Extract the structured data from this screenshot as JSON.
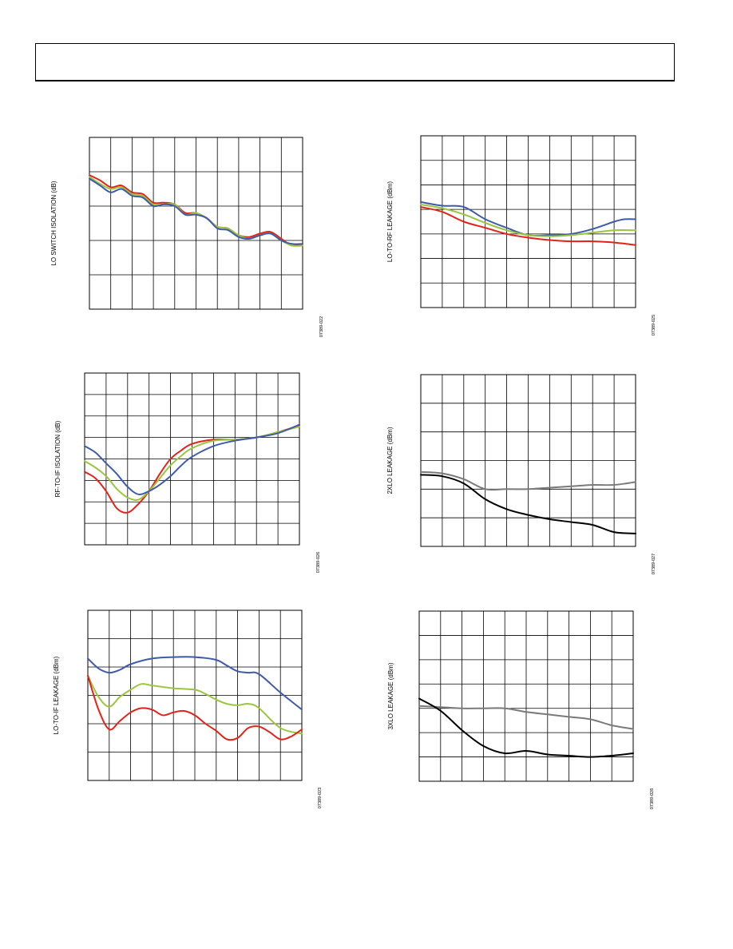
{
  "header": {
    "title": ""
  },
  "colors": {
    "blue": "#3d5ba9",
    "green": "#9bc53d",
    "red": "#e2231a",
    "black": "#000000",
    "gray": "#7a7a7a"
  },
  "chart_data": [
    {
      "id": "lo-switch-isolation",
      "type": "line",
      "ylabel": "LO SWITCH ISOLATION (dB)",
      "figure_code": "07389-022",
      "grid": true,
      "x_divisions": 10,
      "y_divisions": 5,
      "ylim": [
        0,
        5
      ],
      "xlim": [
        0,
        10
      ],
      "series": [
        {
          "color": "#e2231a",
          "x": [
            0,
            0.5,
            1,
            1.5,
            2,
            2.5,
            3,
            3.5,
            4,
            4.5,
            5,
            5.5,
            6,
            6.5,
            7,
            7.5,
            8,
            8.5,
            9,
            9.5,
            10
          ],
          "y": [
            3.9,
            3.75,
            3.55,
            3.6,
            3.4,
            3.35,
            3.1,
            3.1,
            3.05,
            2.8,
            2.8,
            2.65,
            2.4,
            2.35,
            2.15,
            2.1,
            2.2,
            2.25,
            2.05,
            1.85,
            1.9
          ]
        },
        {
          "color": "#9bc53d",
          "x": [
            0,
            0.5,
            1,
            1.5,
            2,
            2.5,
            3,
            3.5,
            4,
            4.5,
            5,
            5.5,
            6,
            6.5,
            7,
            7.5,
            8,
            8.5,
            9,
            9.5,
            10
          ],
          "y": [
            3.85,
            3.65,
            3.5,
            3.55,
            3.35,
            3.3,
            3.05,
            3.05,
            3.05,
            2.75,
            2.8,
            2.65,
            2.4,
            2.35,
            2.15,
            2.05,
            2.15,
            2.2,
            2.0,
            1.85,
            1.85
          ]
        },
        {
          "color": "#3d5ba9",
          "x": [
            0,
            0.5,
            1,
            1.5,
            2,
            2.5,
            3,
            3.5,
            4,
            4.5,
            5,
            5.5,
            6,
            6.5,
            7,
            7.5,
            8,
            8.5,
            9,
            9.5,
            10
          ],
          "y": [
            3.8,
            3.6,
            3.4,
            3.5,
            3.3,
            3.25,
            3.0,
            3.05,
            3.0,
            2.75,
            2.75,
            2.65,
            2.35,
            2.3,
            2.1,
            2.05,
            2.15,
            2.2,
            2.0,
            1.9,
            1.9
          ]
        }
      ]
    },
    {
      "id": "lo-to-rf-leakage",
      "type": "line",
      "ylabel": "LO-TO-RF LEAKAGE (dBm)",
      "figure_code": "07389-025",
      "grid": true,
      "x_divisions": 10,
      "y_divisions": 7,
      "ylim": [
        0,
        7
      ],
      "xlim": [
        0,
        10
      ],
      "series": [
        {
          "color": "#3d5ba9",
          "x": [
            0,
            1,
            2,
            3,
            4,
            5,
            6,
            7,
            8,
            9,
            9.5,
            10
          ],
          "y": [
            4.3,
            4.15,
            4.1,
            3.6,
            3.25,
            2.95,
            2.95,
            3.0,
            3.2,
            3.5,
            3.6,
            3.6
          ]
        },
        {
          "color": "#9bc53d",
          "x": [
            0,
            1,
            2,
            3,
            4,
            5,
            6,
            7,
            8,
            9,
            10
          ],
          "y": [
            4.2,
            4.05,
            3.8,
            3.45,
            3.15,
            2.95,
            2.9,
            2.95,
            3.05,
            3.15,
            3.15
          ]
        },
        {
          "color": "#e2231a",
          "x": [
            0,
            1,
            2,
            3,
            4,
            5,
            6,
            7,
            8,
            9,
            10
          ],
          "y": [
            4.1,
            3.9,
            3.5,
            3.25,
            3.0,
            2.85,
            2.75,
            2.7,
            2.7,
            2.65,
            2.55
          ]
        }
      ]
    },
    {
      "id": "rf-to-if-isolation",
      "type": "line",
      "ylabel": "RF-TO-IF ISOLATION (dB)",
      "figure_code": "07389-026",
      "grid": true,
      "x_divisions": 10,
      "y_divisions": 8,
      "ylim": [
        0,
        8
      ],
      "xlim": [
        0,
        10
      ],
      "series": [
        {
          "color": "#e2231a",
          "x": [
            0,
            0.5,
            1,
            1.5,
            2,
            2.5,
            3,
            3.5,
            4,
            4.5,
            5,
            6,
            7,
            8,
            9,
            10
          ],
          "y": [
            3.4,
            3.1,
            2.5,
            1.7,
            1.5,
            1.9,
            2.5,
            3.3,
            4.0,
            4.4,
            4.7,
            4.9,
            4.9,
            5.0,
            5.25,
            5.55
          ]
        },
        {
          "color": "#9bc53d",
          "x": [
            0,
            0.5,
            1,
            1.5,
            2,
            2.5,
            3,
            3.5,
            4,
            4.5,
            5,
            6,
            7,
            8,
            9,
            10
          ],
          "y": [
            3.9,
            3.6,
            3.2,
            2.6,
            2.2,
            2.1,
            2.5,
            3.1,
            3.7,
            4.15,
            4.5,
            4.85,
            4.9,
            5.0,
            5.25,
            5.5
          ]
        },
        {
          "color": "#3d5ba9",
          "x": [
            0,
            0.5,
            1,
            1.5,
            2,
            2.5,
            3,
            3.5,
            4,
            4.5,
            5,
            6,
            7,
            8,
            9,
            10
          ],
          "y": [
            4.6,
            4.3,
            3.8,
            3.3,
            2.7,
            2.35,
            2.5,
            2.8,
            3.2,
            3.7,
            4.1,
            4.6,
            4.85,
            5.0,
            5.2,
            5.6
          ]
        }
      ]
    },
    {
      "id": "2xlo-leakage",
      "type": "line",
      "ylabel": "2XLO LEAKAGE (dBm)",
      "figure_code": "07389-027",
      "grid": true,
      "x_divisions": 10,
      "y_divisions": 6,
      "ylim": [
        0,
        6
      ],
      "xlim": [
        0,
        10
      ],
      "series": [
        {
          "color": "#7a7a7a",
          "x": [
            0,
            1,
            2,
            3,
            4,
            5,
            6,
            7,
            8,
            9,
            10
          ],
          "y": [
            2.6,
            2.55,
            2.35,
            2.0,
            2.0,
            2.0,
            2.05,
            2.1,
            2.15,
            2.15,
            2.25
          ]
        },
        {
          "color": "#000000",
          "x": [
            0,
            1,
            2,
            3,
            4,
            5,
            6,
            7,
            8,
            9,
            10
          ],
          "y": [
            2.5,
            2.45,
            2.2,
            1.65,
            1.3,
            1.1,
            0.95,
            0.85,
            0.75,
            0.5,
            0.45
          ]
        }
      ]
    },
    {
      "id": "lo-to-if-leakage",
      "type": "line",
      "ylabel": "LO-TO-IF LEAKAGE (dBm)",
      "figure_code": "07389-023",
      "grid": true,
      "x_divisions": 10,
      "y_divisions": 6,
      "ylim": [
        0,
        6
      ],
      "xlim": [
        0,
        10
      ],
      "series": [
        {
          "color": "#3d5ba9",
          "x": [
            0,
            0.5,
            1,
            1.5,
            2,
            3,
            4,
            5,
            6,
            6.5,
            7,
            7.5,
            8,
            9,
            10
          ],
          "y": [
            4.3,
            3.95,
            3.8,
            3.9,
            4.1,
            4.3,
            4.35,
            4.35,
            4.25,
            4.05,
            3.85,
            3.8,
            3.75,
            3.1,
            2.5
          ]
        },
        {
          "color": "#9bc53d",
          "x": [
            0,
            0.5,
            1,
            1.5,
            2,
            2.5,
            3,
            4,
            5,
            5.5,
            6,
            6.5,
            7,
            7.5,
            8,
            9,
            10
          ],
          "y": [
            3.7,
            2.95,
            2.6,
            2.95,
            3.2,
            3.4,
            3.35,
            3.25,
            3.2,
            3.05,
            2.85,
            2.7,
            2.65,
            2.7,
            2.55,
            1.85,
            1.65
          ]
        },
        {
          "color": "#e2231a",
          "x": [
            0,
            0.5,
            1,
            1.5,
            2,
            2.5,
            3,
            3.5,
            4,
            4.5,
            5,
            5.5,
            6,
            6.5,
            7,
            7.5,
            8,
            8.5,
            9,
            9.5,
            10
          ],
          "y": [
            3.7,
            2.5,
            1.8,
            2.1,
            2.4,
            2.55,
            2.5,
            2.3,
            2.4,
            2.45,
            2.3,
            2.0,
            1.75,
            1.45,
            1.5,
            1.85,
            1.9,
            1.7,
            1.45,
            1.55,
            1.8
          ]
        }
      ]
    },
    {
      "id": "3xlo-leakage",
      "type": "line",
      "ylabel": "3XLO LEAKAGE (dBm)",
      "figure_code": "07389-028",
      "grid": true,
      "x_divisions": 10,
      "y_divisions": 7,
      "ylim": [
        0,
        7
      ],
      "xlim": [
        0,
        10
      ],
      "series": [
        {
          "color": "#7a7a7a",
          "x": [
            0,
            1,
            2,
            3,
            4,
            5,
            6,
            7,
            8,
            9,
            10
          ],
          "y": [
            3.1,
            3.05,
            3.0,
            3.0,
            3.0,
            2.85,
            2.75,
            2.65,
            2.55,
            2.3,
            2.15
          ]
        },
        {
          "color": "#000000",
          "x": [
            0,
            1,
            2,
            3,
            4,
            5,
            6,
            7,
            8,
            9,
            10
          ],
          "y": [
            3.4,
            2.9,
            2.1,
            1.45,
            1.15,
            1.25,
            1.1,
            1.05,
            1.0,
            1.05,
            1.15
          ]
        }
      ]
    }
  ]
}
